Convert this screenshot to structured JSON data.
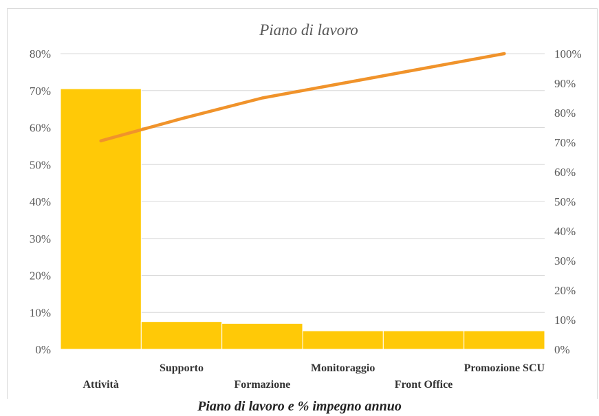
{
  "caption": "Piano di lavoro e % impegno annuo",
  "colors": {
    "bar": "#FFC907",
    "line": "#F0932B",
    "grid": "#D9D9D9",
    "text": "#595959"
  },
  "chart_data": {
    "type": "bar",
    "title": "Piano di lavoro",
    "categories": [
      "Attività",
      "Supporto",
      "Formazione",
      "Monitoraggio",
      "Front Office",
      "Promozione SCU"
    ],
    "values": [
      70.5,
      7.5,
      7,
      5,
      5,
      5
    ],
    "y_left": {
      "min": 0,
      "max": 80,
      "step": 10,
      "format": "%"
    },
    "y_right": {
      "min": 0,
      "max": 100,
      "step": 10,
      "format": "%"
    },
    "cumulative_line": {
      "axis": "right",
      "values": [
        70.5,
        78,
        85,
        90,
        95,
        100
      ]
    },
    "grid": true,
    "legend": "none"
  }
}
